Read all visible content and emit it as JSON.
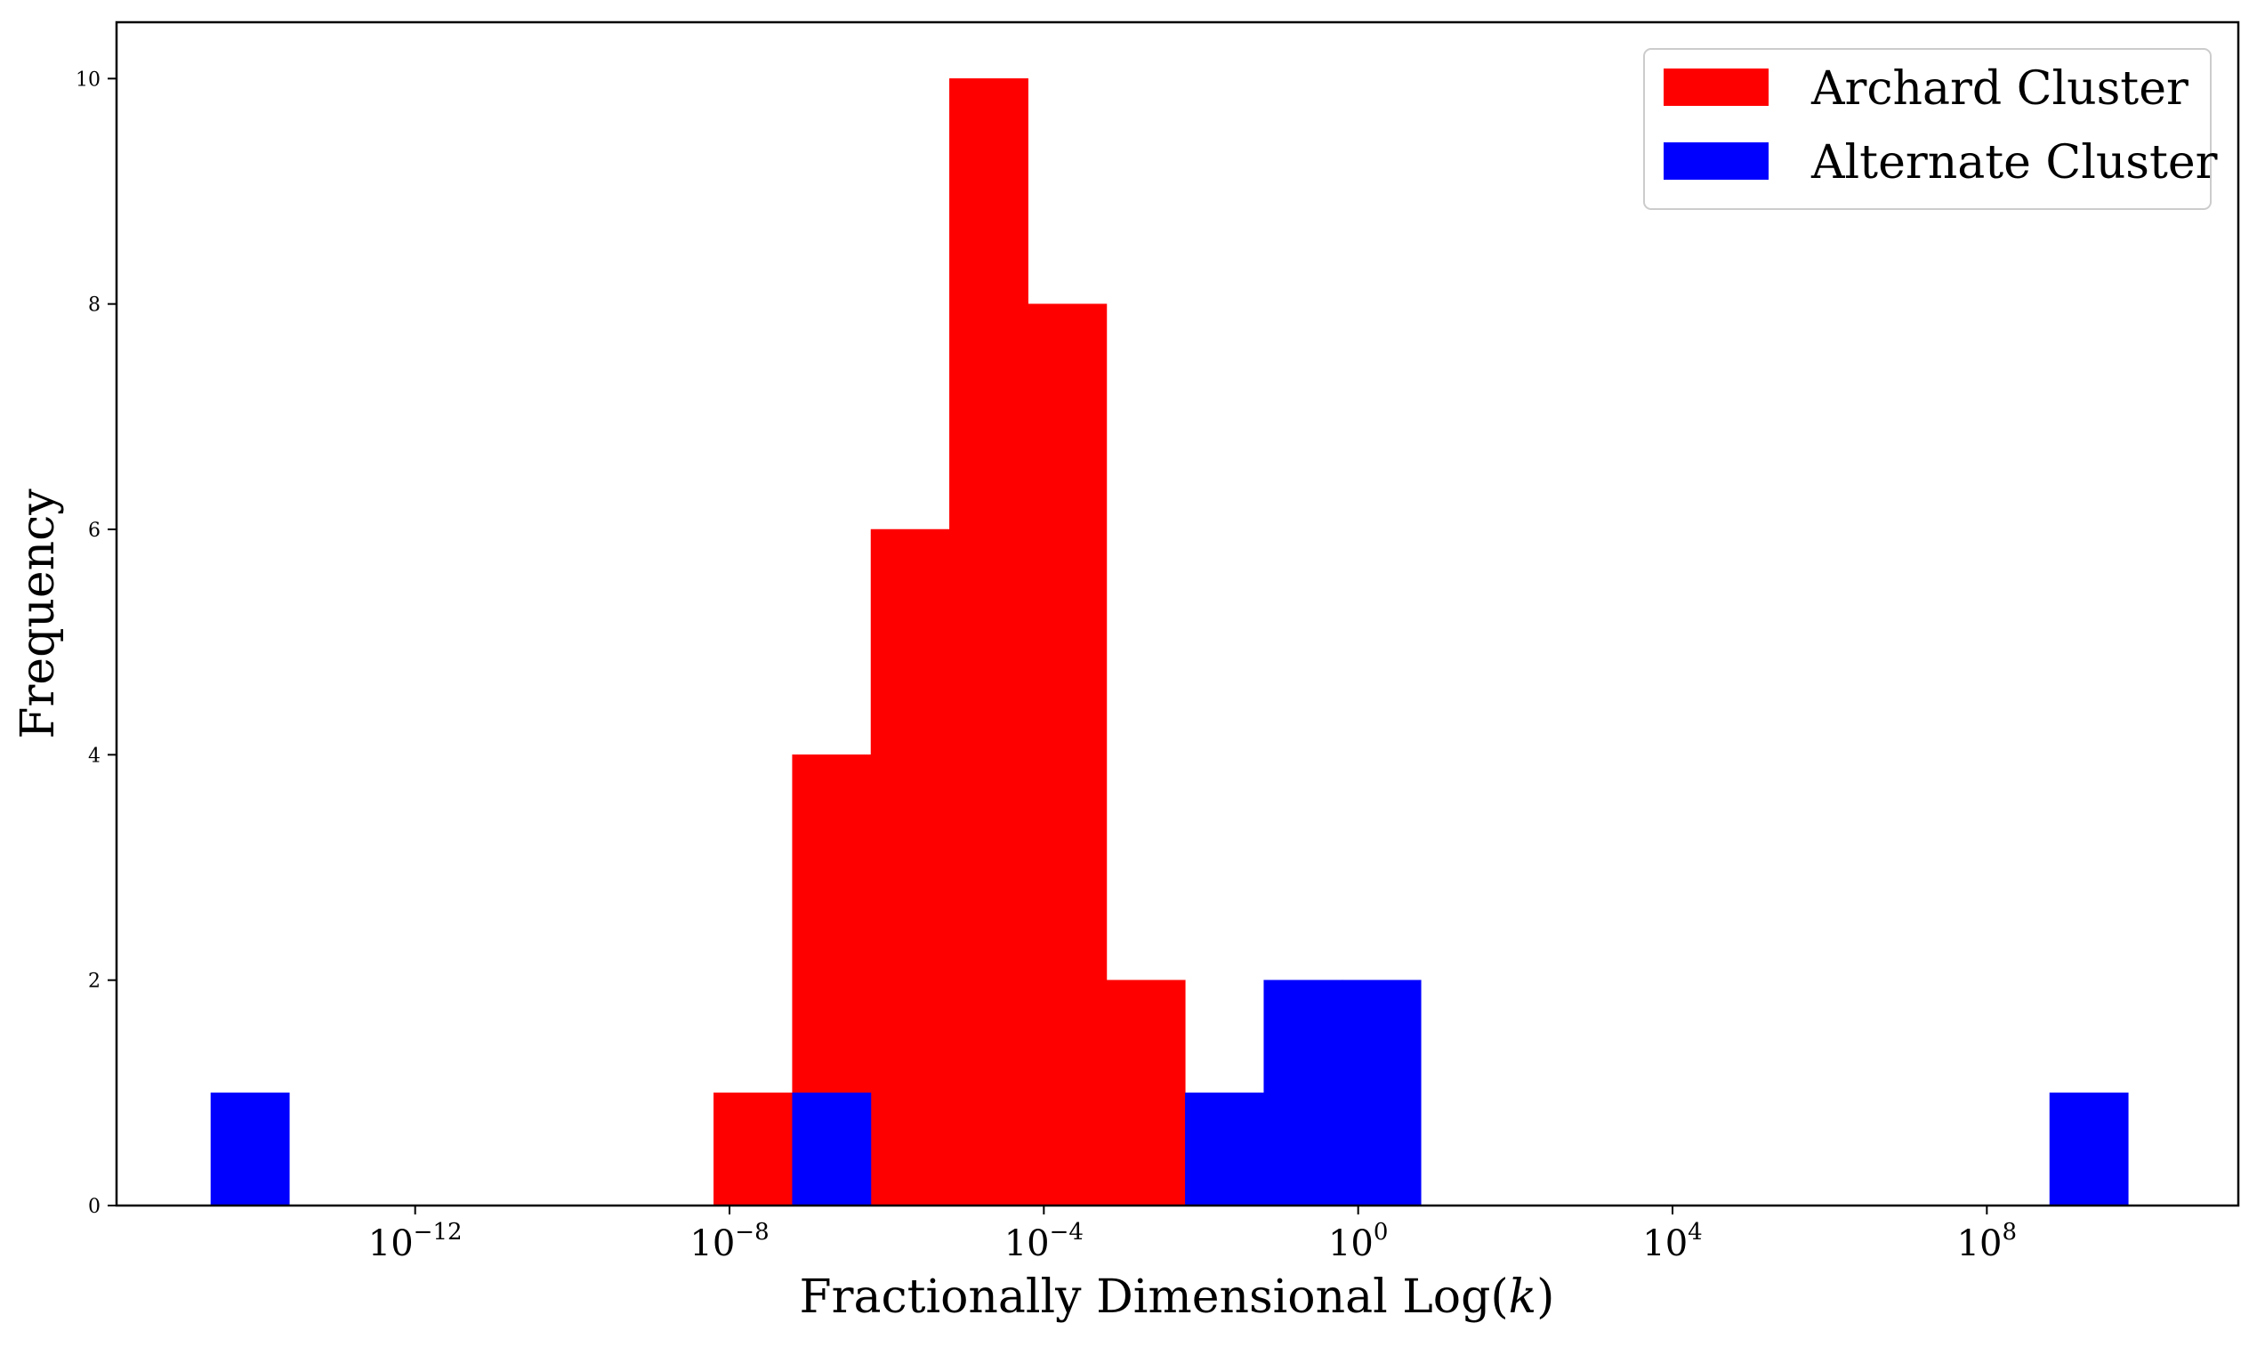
{
  "chart_data": {
    "type": "bar",
    "subtype": "histogram",
    "xscale": "log",
    "xlabel": "Fractionally Dimensional Log(",
    "xlabel_var": "k",
    "xlabel_close": ")",
    "ylabel": "Frequency",
    "xlim_log10": [
      -15.8,
      11.2
    ],
    "ylim": [
      0,
      10.5
    ],
    "y_ticks": [
      "0",
      "2",
      "4",
      "6",
      "8",
      "10"
    ],
    "x_ticks": [
      {
        "exp": -12,
        "base": "10",
        "sup": "−12"
      },
      {
        "exp": -8,
        "base": "10",
        "sup": "−8"
      },
      {
        "exp": -4,
        "base": "10",
        "sup": "−4"
      },
      {
        "exp": 0,
        "base": "10",
        "sup": "0"
      },
      {
        "exp": 4,
        "base": "10",
        "sup": "4"
      },
      {
        "exp": 8,
        "base": "10",
        "sup": "8"
      }
    ],
    "legend_position": "top-right",
    "series": [
      {
        "name": "Archard Cluster",
        "color": "#ff0000",
        "bins_log10_start": [
          -8.2,
          -7.2,
          -6.2,
          -5.2,
          -4.2,
          -3.2
        ],
        "bin_width_log10": 1.0,
        "counts": [
          1,
          4,
          6,
          10,
          8,
          2
        ]
      },
      {
        "name": "Alternate Cluster",
        "color": "#0000ff",
        "bins_log10_start": [
          -14.6,
          -7.2,
          -2.2,
          -1.2,
          -0.2,
          8.8
        ],
        "bin_widths_log10": [
          1.0,
          1.0,
          1.0,
          1.0,
          1.0,
          1.0
        ],
        "counts": [
          1,
          1,
          1,
          2,
          2,
          1
        ]
      }
    ]
  }
}
